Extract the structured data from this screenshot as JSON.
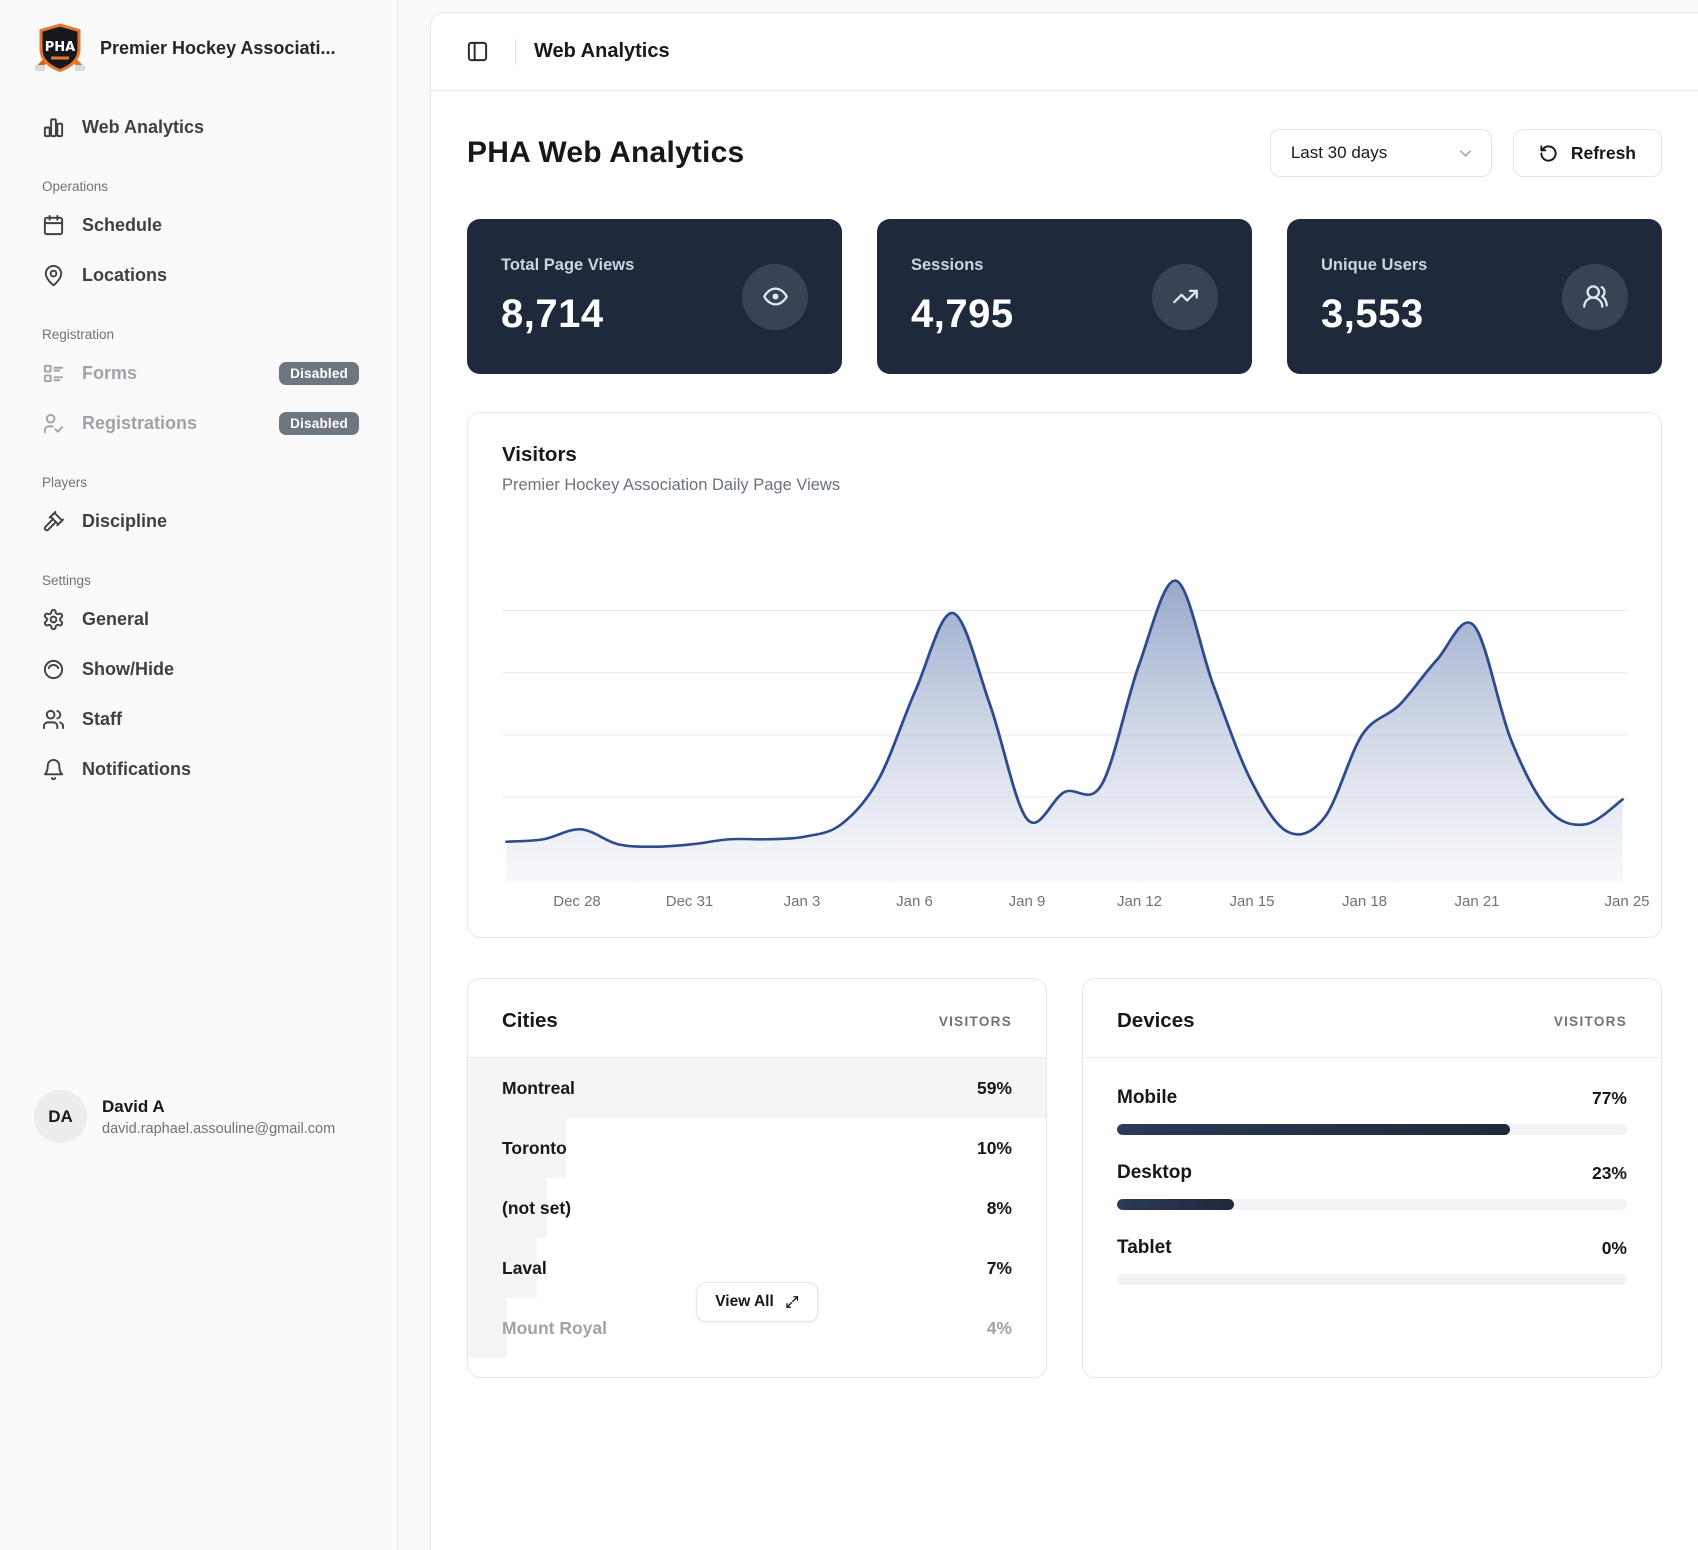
{
  "org": {
    "name": "Premier Hockey Associati...",
    "logo_text": "PHA"
  },
  "sidebar": {
    "sections": [
      {
        "title": "",
        "items": [
          {
            "label": "Web Analytics",
            "icon": "bar-chart-icon"
          }
        ]
      },
      {
        "title": "Operations",
        "items": [
          {
            "label": "Schedule",
            "icon": "calendar-icon"
          },
          {
            "label": "Locations",
            "icon": "map-pin-icon"
          }
        ]
      },
      {
        "title": "Registration",
        "items": [
          {
            "label": "Forms",
            "icon": "forms-icon",
            "badge": "Disabled",
            "disabled": true
          },
          {
            "label": "Registrations",
            "icon": "user-check-icon",
            "badge": "Disabled",
            "disabled": true
          }
        ]
      },
      {
        "title": "Players",
        "items": [
          {
            "label": "Discipline",
            "icon": "gavel-icon"
          }
        ]
      },
      {
        "title": "Settings",
        "items": [
          {
            "label": "General",
            "icon": "gear-icon"
          },
          {
            "label": "Show/Hide",
            "icon": "eye-toggle-icon"
          },
          {
            "label": "Staff",
            "icon": "users-icon"
          },
          {
            "label": "Notifications",
            "icon": "bell-icon"
          }
        ]
      }
    ],
    "user": {
      "initials": "DA",
      "name": "David A",
      "email": "david.raphael.assouline@gmail.com"
    }
  },
  "header": {
    "breadcrumb": "Web Analytics"
  },
  "page": {
    "title": "PHA Web Analytics",
    "date_range": "Last 30 days",
    "refresh_label": "Refresh"
  },
  "stats": [
    {
      "label": "Total Page Views",
      "value": "8,714",
      "icon": "eye-icon"
    },
    {
      "label": "Sessions",
      "value": "4,795",
      "icon": "trending-up-icon"
    },
    {
      "label": "Unique Users",
      "value": "3,553",
      "icon": "users-round-icon"
    }
  ],
  "chart_data": {
    "type": "area",
    "title": "Visitors",
    "subtitle": "Premier Hockey Association Daily Page Views",
    "x": [
      "Dec 26",
      "Dec 27",
      "Dec 28",
      "Dec 29",
      "Dec 30",
      "Dec 31",
      "Jan 1",
      "Jan 2",
      "Jan 3",
      "Jan 4",
      "Jan 5",
      "Jan 6",
      "Jan 7",
      "Jan 8",
      "Jan 9",
      "Jan 10",
      "Jan 11",
      "Jan 12",
      "Jan 13",
      "Jan 14",
      "Jan 15",
      "Jan 16",
      "Jan 17",
      "Jan 18",
      "Jan 19",
      "Jan 20",
      "Jan 21",
      "Jan 22",
      "Jan 23",
      "Jan 24",
      "Jan 25"
    ],
    "values": [
      7,
      8,
      12,
      6,
      5,
      6,
      8,
      8,
      9,
      14,
      32,
      68,
      99,
      62,
      16,
      27,
      30,
      78,
      112,
      70,
      32,
      11,
      17,
      50,
      62,
      80,
      94,
      48,
      20,
      14,
      24
    ],
    "tick_labels": [
      "Dec 28",
      "Dec 31",
      "Jan 3",
      "Jan 6",
      "Jan 9",
      "Jan 12",
      "Jan 15",
      "Jan 18",
      "Jan 21",
      "Jan 25"
    ],
    "ylim": [
      0,
      120
    ],
    "grid": true,
    "gridline_values": [
      25,
      50,
      75,
      100
    ],
    "legend": "none",
    "line_color": "#2d4b8e",
    "fill_top_color": "#7e92bd",
    "fill_bottom_color": "#edf0f6",
    "grid_color": "#e9eaec"
  },
  "cities": {
    "title": "Cities",
    "col_header": "VISITORS",
    "rows": [
      {
        "name": "Montreal",
        "pct": "59%",
        "value": 59,
        "muted": false
      },
      {
        "name": "Toronto",
        "pct": "10%",
        "value": 10,
        "muted": false
      },
      {
        "name": "(not set)",
        "pct": "8%",
        "value": 8,
        "muted": false
      },
      {
        "name": "Laval",
        "pct": "7%",
        "value": 7,
        "muted": false
      },
      {
        "name": "Mount Royal",
        "pct": "4%",
        "value": 4,
        "muted": true
      }
    ],
    "view_all_label": "View All"
  },
  "devices": {
    "title": "Devices",
    "col_header": "VISITORS",
    "rows": [
      {
        "name": "Mobile",
        "pct": "77%",
        "value": 77
      },
      {
        "name": "Desktop",
        "pct": "23%",
        "value": 23
      },
      {
        "name": "Tablet",
        "pct": "0%",
        "value": 0
      }
    ]
  },
  "colors": {
    "accent_navy": "#1e293b",
    "badge_gray": "#6e7680"
  }
}
